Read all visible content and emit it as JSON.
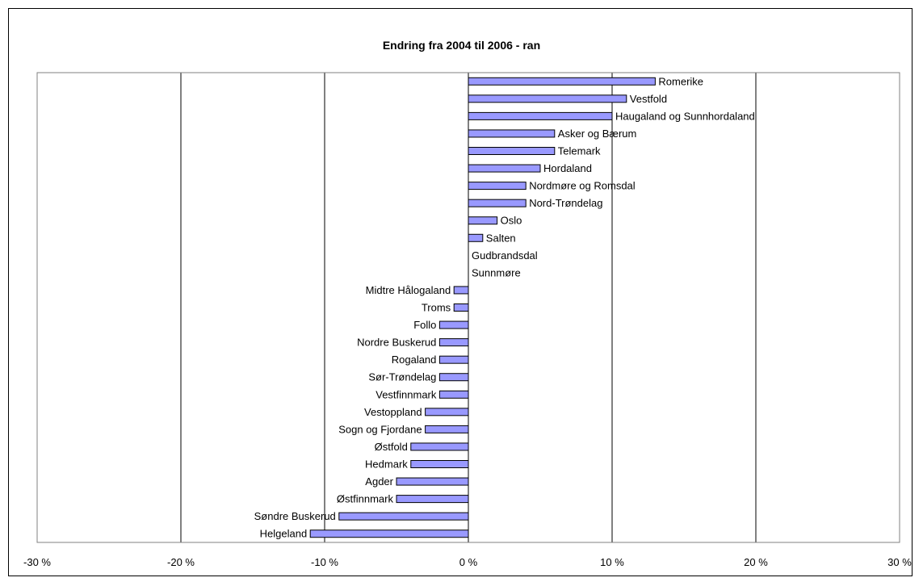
{
  "chart_data": {
    "type": "bar",
    "orientation": "horizontal",
    "title": "Endring fra 2004 til 2006 - ran",
    "xlim": [
      -0.3,
      0.3
    ],
    "x_ticks": [
      {
        "value": -0.3,
        "label": "-30 %"
      },
      {
        "value": -0.2,
        "label": "-20 %"
      },
      {
        "value": -0.1,
        "label": "-10 %"
      },
      {
        "value": 0.0,
        "label": "0 %"
      },
      {
        "value": 0.1,
        "label": "10 %"
      },
      {
        "value": 0.2,
        "label": "20 %"
      },
      {
        "value": 0.3,
        "label": "30 %"
      }
    ],
    "grid": true,
    "categories": [
      "Romerike",
      "Vestfold",
      "Haugaland og Sunnhordaland",
      "Asker og Bærum",
      "Telemark",
      "Hordaland",
      "Nordmøre og Romsdal",
      "Nord-Trøndelag",
      "Oslo",
      "Salten",
      "Gudbrandsdal",
      "Sunnmøre",
      "Midtre Hålogaland",
      "Troms",
      "Follo",
      "Nordre Buskerud",
      "Rogaland",
      "Sør-Trøndelag",
      "Vestfinnmark",
      "Vestoppland",
      "Sogn og Fjordane",
      "Østfold",
      "Hedmark",
      "Agder",
      "Østfinnmark",
      "Søndre Buskerud",
      "Helgeland"
    ],
    "values": [
      0.13,
      0.11,
      0.1,
      0.06,
      0.06,
      0.05,
      0.04,
      0.04,
      0.02,
      0.01,
      0.0,
      0.0,
      -0.01,
      -0.01,
      -0.02,
      -0.02,
      -0.02,
      -0.02,
      -0.02,
      -0.03,
      -0.03,
      -0.04,
      -0.04,
      -0.05,
      -0.05,
      -0.09,
      -0.11
    ],
    "colors": {
      "bar_fill": "#9999ff",
      "bar_stroke": "#000000",
      "gridline": "#000000",
      "plot_border": "#808080"
    }
  }
}
